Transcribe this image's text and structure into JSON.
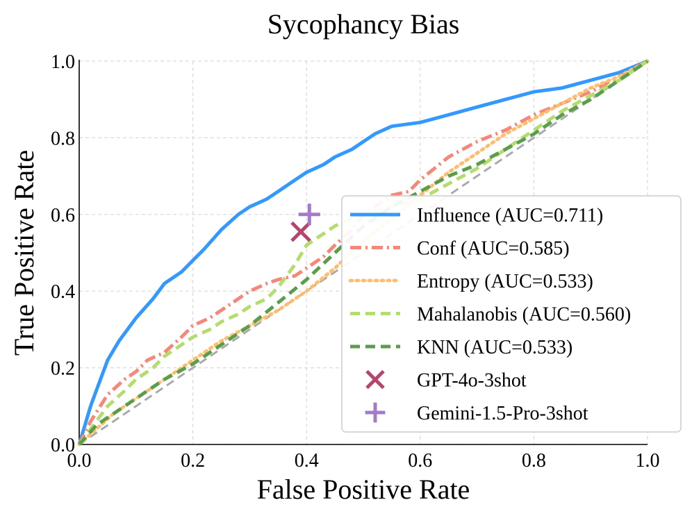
{
  "chart_data": {
    "type": "line",
    "title": "Sycophancy Bias",
    "xlabel": "False Positive Rate",
    "ylabel": "True Positive Rate",
    "xlim": [
      0.0,
      1.0
    ],
    "ylim": [
      0.0,
      1.0
    ],
    "xticks": [
      "0.0",
      "0.2",
      "0.4",
      "0.6",
      "0.8",
      "1.0"
    ],
    "yticks": [
      "0.0",
      "0.2",
      "0.4",
      "0.6",
      "0.8",
      "1.0"
    ],
    "grid": true,
    "legend_position": "lower right",
    "diagonal_reference": true,
    "series": [
      {
        "name": "Influence (AUC=0.711)",
        "color": "#3399ff",
        "style": "solid",
        "x": [
          0.0,
          0.01,
          0.02,
          0.03,
          0.05,
          0.07,
          0.1,
          0.13,
          0.15,
          0.18,
          0.2,
          0.22,
          0.25,
          0.28,
          0.3,
          0.33,
          0.35,
          0.38,
          0.4,
          0.43,
          0.45,
          0.48,
          0.5,
          0.52,
          0.55,
          0.6,
          0.65,
          0.7,
          0.75,
          0.8,
          0.85,
          0.9,
          0.95,
          1.0
        ],
        "y": [
          0.0,
          0.05,
          0.1,
          0.14,
          0.22,
          0.27,
          0.33,
          0.38,
          0.42,
          0.45,
          0.48,
          0.51,
          0.56,
          0.6,
          0.62,
          0.64,
          0.66,
          0.69,
          0.71,
          0.73,
          0.75,
          0.77,
          0.79,
          0.81,
          0.83,
          0.84,
          0.86,
          0.88,
          0.9,
          0.92,
          0.93,
          0.95,
          0.97,
          1.0
        ]
      },
      {
        "name": "Conf (AUC=0.585)",
        "color": "#f4897b",
        "style": "dashdot",
        "x": [
          0.0,
          0.02,
          0.05,
          0.08,
          0.1,
          0.12,
          0.15,
          0.18,
          0.2,
          0.23,
          0.25,
          0.28,
          0.3,
          0.33,
          0.35,
          0.38,
          0.4,
          0.43,
          0.45,
          0.48,
          0.5,
          0.53,
          0.55,
          0.58,
          0.6,
          0.65,
          0.7,
          0.75,
          0.8,
          0.85,
          0.9,
          0.95,
          1.0
        ],
        "y": [
          0.0,
          0.06,
          0.13,
          0.17,
          0.19,
          0.22,
          0.24,
          0.28,
          0.31,
          0.33,
          0.35,
          0.38,
          0.4,
          0.42,
          0.43,
          0.44,
          0.46,
          0.49,
          0.52,
          0.56,
          0.6,
          0.63,
          0.65,
          0.66,
          0.69,
          0.75,
          0.79,
          0.82,
          0.86,
          0.89,
          0.92,
          0.96,
          1.0
        ]
      },
      {
        "name": "Entropy (AUC=0.533)",
        "color": "#fdbf6f",
        "style": "dotted",
        "x": [
          0.0,
          0.03,
          0.06,
          0.1,
          0.15,
          0.2,
          0.25,
          0.3,
          0.35,
          0.4,
          0.45,
          0.5,
          0.55,
          0.6,
          0.65,
          0.7,
          0.75,
          0.8,
          0.85,
          0.9,
          0.95,
          1.0
        ],
        "y": [
          0.0,
          0.04,
          0.08,
          0.12,
          0.17,
          0.22,
          0.27,
          0.31,
          0.35,
          0.4,
          0.46,
          0.53,
          0.59,
          0.65,
          0.71,
          0.76,
          0.81,
          0.85,
          0.89,
          0.93,
          0.96,
          1.0
        ]
      },
      {
        "name": "Mahalanobis (AUC=0.560)",
        "color": "#b5dc6e",
        "style": "dashed",
        "x": [
          0.0,
          0.03,
          0.05,
          0.08,
          0.1,
          0.13,
          0.15,
          0.18,
          0.2,
          0.23,
          0.25,
          0.28,
          0.3,
          0.33,
          0.35,
          0.38,
          0.4,
          0.43,
          0.45,
          0.48,
          0.5,
          0.55,
          0.6,
          0.65,
          0.7,
          0.75,
          0.8,
          0.85,
          0.9,
          0.95,
          1.0
        ],
        "y": [
          0.0,
          0.06,
          0.1,
          0.14,
          0.17,
          0.2,
          0.23,
          0.26,
          0.28,
          0.3,
          0.32,
          0.34,
          0.36,
          0.38,
          0.41,
          0.47,
          0.52,
          0.55,
          0.57,
          0.59,
          0.6,
          0.62,
          0.64,
          0.68,
          0.72,
          0.77,
          0.82,
          0.87,
          0.91,
          0.95,
          1.0
        ]
      },
      {
        "name": "KNN (AUC=0.533)",
        "color": "#5a9e4b",
        "style": "dashed",
        "x": [
          0.0,
          0.03,
          0.06,
          0.1,
          0.15,
          0.2,
          0.25,
          0.3,
          0.35,
          0.4,
          0.45,
          0.5,
          0.55,
          0.6,
          0.65,
          0.7,
          0.75,
          0.8,
          0.85,
          0.9,
          0.95,
          1.0
        ],
        "y": [
          0.0,
          0.05,
          0.08,
          0.12,
          0.17,
          0.21,
          0.26,
          0.31,
          0.37,
          0.43,
          0.5,
          0.57,
          0.62,
          0.66,
          0.7,
          0.73,
          0.77,
          0.81,
          0.86,
          0.9,
          0.95,
          1.0
        ]
      }
    ],
    "points": [
      {
        "name": "GPT-4o-3shot",
        "color": "#b5446e",
        "marker": "x",
        "x": 0.39,
        "y": 0.555
      },
      {
        "name": "Gemini-1.5-Pro-3shot",
        "color": "#a47bc8",
        "marker": "+",
        "x": 0.405,
        "y": 0.6
      }
    ]
  }
}
